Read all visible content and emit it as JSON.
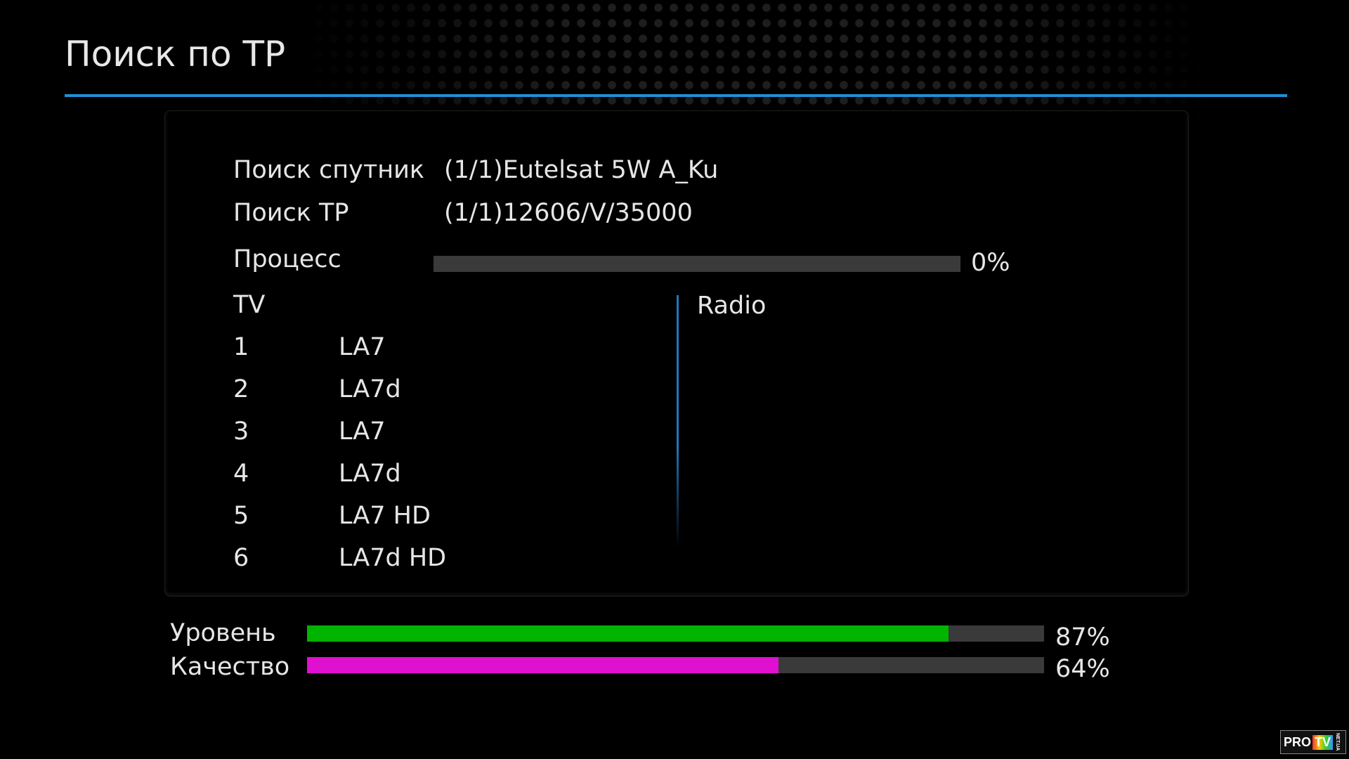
{
  "header": {
    "title": "Поиск по ТР"
  },
  "info": {
    "satellite_label": "Поиск спутник",
    "satellite_value": "(1/1)Eutelsat 5W A_Ku",
    "tp_label": "Поиск ТР",
    "tp_value": "(1/1)12606/V/35000",
    "process_label": "Процесс",
    "process_percent": 0,
    "process_text": "0%"
  },
  "tv": {
    "header": "TV",
    "channels": [
      {
        "num": "1",
        "name": "LA7"
      },
      {
        "num": "2",
        "name": "LA7d"
      },
      {
        "num": "3",
        "name": "LA7"
      },
      {
        "num": "4",
        "name": "LA7d"
      },
      {
        "num": "5",
        "name": "LA7 HD"
      },
      {
        "num": "6",
        "name": "LA7d HD"
      }
    ]
  },
  "radio": {
    "header": "Radio",
    "channels": []
  },
  "signal": {
    "level_label": "Уровень",
    "level_percent": 87,
    "level_text": "87%",
    "level_color": "#00b400",
    "quality_label": "Качество",
    "quality_percent": 64,
    "quality_text": "64%",
    "quality_color": "#e010d0"
  },
  "colors": {
    "accent": "#1e90d6",
    "bar_track": "#3a3a3a"
  },
  "logo": {
    "text": "PRO TV NET.UA"
  }
}
